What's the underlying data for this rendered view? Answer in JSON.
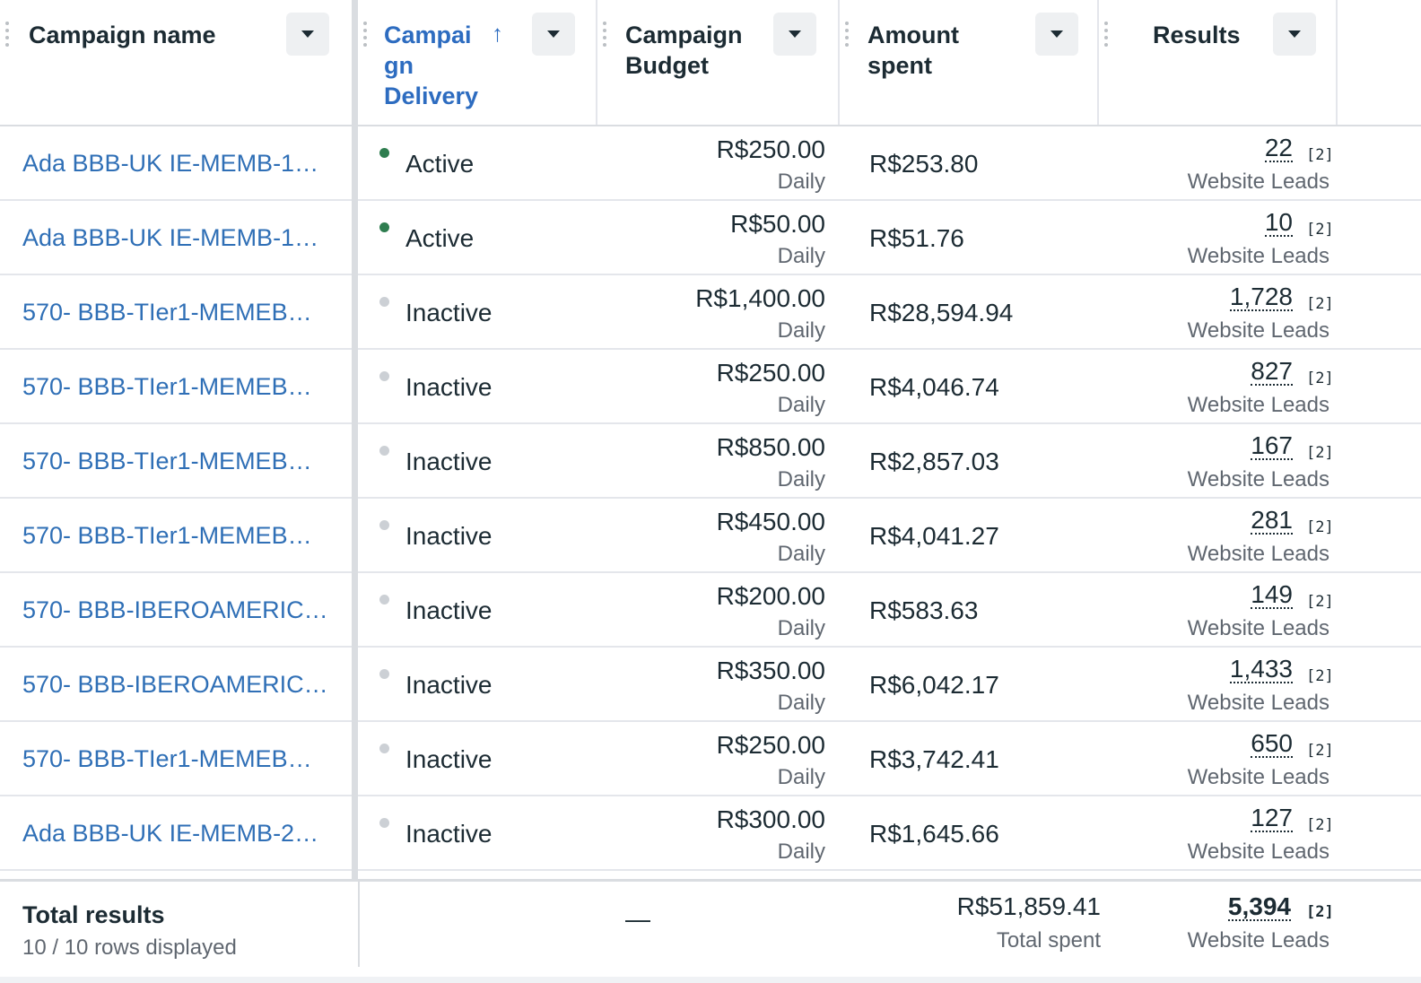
{
  "columns": {
    "campaign_name": "Campaign name",
    "delivery_line1": "Campai",
    "delivery_line2": "gn",
    "delivery_line3": "Delivery",
    "sort_arrow": "↑",
    "budget_line1": "Campaign",
    "budget_line2": "Budget",
    "spent_line1": "Amount",
    "spent_line2": "spent",
    "results": "Results"
  },
  "rows": [
    {
      "name": "Ada BBB-UK IE-MEMB-1…",
      "status": "Active",
      "active": true,
      "budget": "R$250.00",
      "budget_period": "Daily",
      "spent": "R$253.80",
      "result": "22",
      "ref": "[2]",
      "result_type": "Website Leads"
    },
    {
      "name": "Ada BBB-UK IE-MEMB-1…",
      "status": "Active",
      "active": true,
      "budget": "R$50.00",
      "budget_period": "Daily",
      "spent": "R$51.76",
      "result": "10",
      "ref": "[2]",
      "result_type": "Website Leads"
    },
    {
      "name": "570- BBB-TIer1-MEMEB…",
      "status": "Inactive",
      "active": false,
      "budget": "R$1,400.00",
      "budget_period": "Daily",
      "spent": "R$28,594.94",
      "result": "1,728",
      "ref": "[2]",
      "result_type": "Website Leads"
    },
    {
      "name": "570- BBB-TIer1-MEMEB…",
      "status": "Inactive",
      "active": false,
      "budget": "R$250.00",
      "budget_period": "Daily",
      "spent": "R$4,046.74",
      "result": "827",
      "ref": "[2]",
      "result_type": "Website Leads"
    },
    {
      "name": "570- BBB-TIer1-MEMEB…",
      "status": "Inactive",
      "active": false,
      "budget": "R$850.00",
      "budget_period": "Daily",
      "spent": "R$2,857.03",
      "result": "167",
      "ref": "[2]",
      "result_type": "Website Leads"
    },
    {
      "name": "570- BBB-TIer1-MEMEB…",
      "status": "Inactive",
      "active": false,
      "budget": "R$450.00",
      "budget_period": "Daily",
      "spent": "R$4,041.27",
      "result": "281",
      "ref": "[2]",
      "result_type": "Website Leads"
    },
    {
      "name": "570- BBB-IBEROAMERIC…",
      "status": "Inactive",
      "active": false,
      "budget": "R$200.00",
      "budget_period": "Daily",
      "spent": "R$583.63",
      "result": "149",
      "ref": "[2]",
      "result_type": "Website Leads"
    },
    {
      "name": "570- BBB-IBEROAMERIC…",
      "status": "Inactive",
      "active": false,
      "budget": "R$350.00",
      "budget_period": "Daily",
      "spent": "R$6,042.17",
      "result": "1,433",
      "ref": "[2]",
      "result_type": "Website Leads"
    },
    {
      "name": "570- BBB-TIer1-MEMEB…",
      "status": "Inactive",
      "active": false,
      "budget": "R$250.00",
      "budget_period": "Daily",
      "spent": "R$3,742.41",
      "result": "650",
      "ref": "[2]",
      "result_type": "Website Leads"
    },
    {
      "name": "Ada BBB-UK IE-MEMB-2…",
      "status": "Inactive",
      "active": false,
      "budget": "R$300.00",
      "budget_period": "Daily",
      "spent": "R$1,645.66",
      "result": "127",
      "ref": "[2]",
      "result_type": "Website Leads"
    }
  ],
  "footer": {
    "title": "Total results",
    "rows_displayed": "10 / 10 rows displayed",
    "budget": "—",
    "spent": "R$51,859.41",
    "spent_label": "Total spent",
    "result": "5,394",
    "ref": "[2]",
    "result_type": "Website Leads"
  },
  "colors": {
    "link": "#2f6fb6",
    "sorted_header": "#2d6cc0",
    "active_dot": "#2e7d4f",
    "inactive_dot": "#ccd0d5"
  }
}
